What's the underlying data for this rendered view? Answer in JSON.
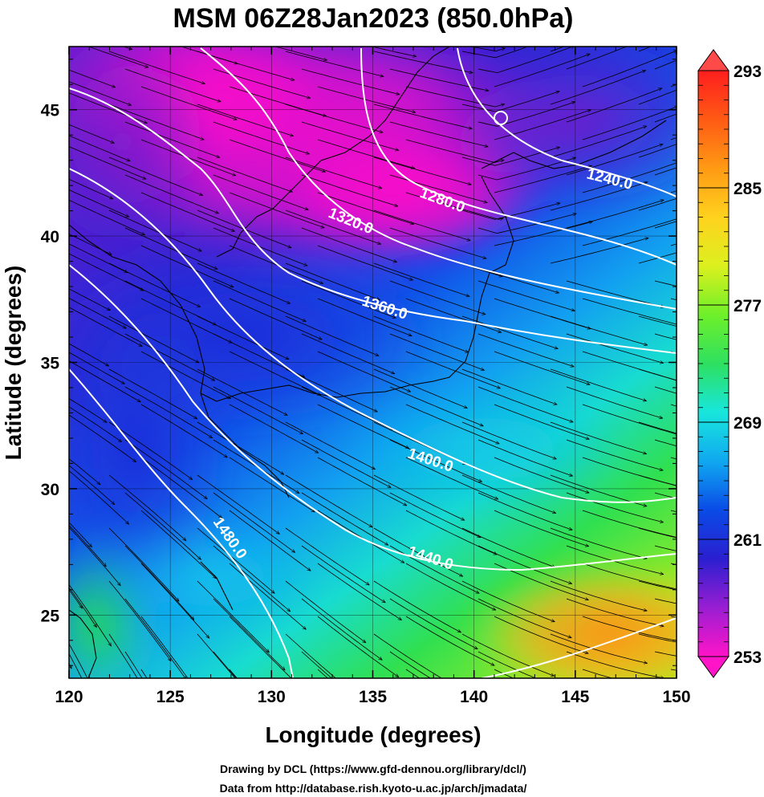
{
  "title": "MSM 06Z28Jan2023 (850.0hPa)",
  "x_axis": {
    "title": "Longitude (degrees)",
    "range": [
      120,
      150
    ],
    "ticks": [
      "120",
      "125",
      "130",
      "135",
      "140",
      "145",
      "150"
    ]
  },
  "y_axis": {
    "title": "Latitude  (degrees)",
    "range": [
      22.5,
      47.5
    ],
    "ticks": [
      "25",
      "30",
      "35",
      "40",
      "45"
    ]
  },
  "colorbar": {
    "range": [
      253,
      293
    ],
    "labels": [
      "293",
      "285",
      "277",
      "269",
      "261",
      "253"
    ],
    "stops": [
      "#ff14c8",
      "#9a1ed2",
      "#2a1fd0",
      "#0a4be6",
      "#10a8f0",
      "#18e6dc",
      "#2ee060",
      "#6ef02a",
      "#dcf01e",
      "#ffd21e",
      "#ff9a14",
      "#ff5a14",
      "#ff1e1e"
    ]
  },
  "contours": {
    "color": "#ffffff",
    "labels": [
      "1240.0",
      "1280.0",
      "1320.0",
      "1360.0",
      "1400.0",
      "1440.0",
      "1480.0"
    ]
  },
  "credits": {
    "line1": "Drawing by DCL (https://www.gfd-dennou.org/library/dcl/)",
    "line2": "Data from http://database.rish.kyoto-u.ac.jp/arch/jmadata/"
  }
}
